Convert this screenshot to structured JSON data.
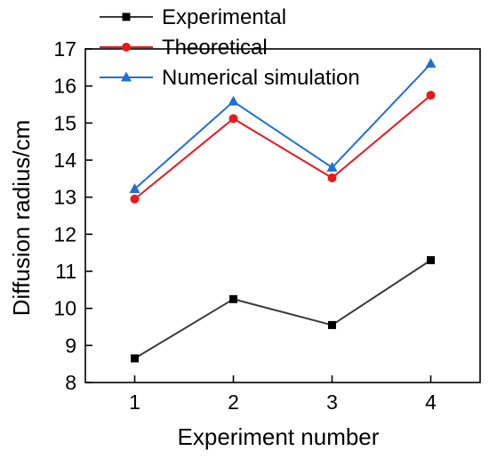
{
  "chart_data": {
    "type": "line",
    "title": "",
    "xlabel": "Experiment number",
    "ylabel": "Diffusion radius/cm",
    "x": [
      1,
      2,
      3,
      4
    ],
    "xlim": [
      0.5,
      4.5
    ],
    "ylim": [
      8,
      17
    ],
    "xticks": [
      "1",
      "2",
      "3",
      "4"
    ],
    "yticks": [
      "8",
      "9",
      "10",
      "11",
      "12",
      "13",
      "14",
      "15",
      "16",
      "17"
    ],
    "grid": false,
    "legend_position": "top-left",
    "series": [
      {
        "name": "Experimental",
        "values": [
          8.65,
          10.25,
          9.55,
          11.3
        ],
        "color": "#3a3a3a",
        "marker": "square"
      },
      {
        "name": "Theoretical",
        "values": [
          12.95,
          15.12,
          13.52,
          15.75
        ],
        "color": "#e8191a",
        "marker": "circle"
      },
      {
        "name": "Numerical simulation",
        "values": [
          13.22,
          15.58,
          13.8,
          16.6
        ],
        "color": "#1f6fd6",
        "marker": "triangle"
      }
    ]
  }
}
